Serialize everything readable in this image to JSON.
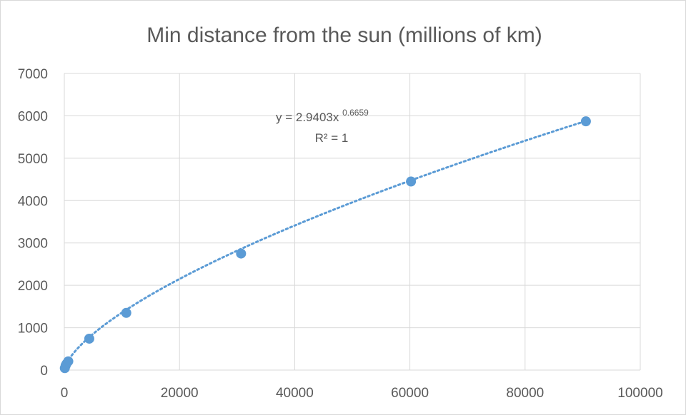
{
  "chart_data": {
    "type": "scatter",
    "title": "Min distance from the sun (millions of km)",
    "xlabel": "",
    "ylabel": "",
    "xlim": [
      0,
      100000
    ],
    "ylim": [
      0,
      7000
    ],
    "x_ticks": [
      0,
      20000,
      40000,
      60000,
      80000,
      100000
    ],
    "y_ticks": [
      0,
      1000,
      2000,
      3000,
      4000,
      5000,
      6000,
      7000
    ],
    "x_tick_labels": [
      "0",
      "20000",
      "40000",
      "60000",
      "80000",
      "100000"
    ],
    "y_tick_labels": [
      "0",
      "1000",
      "2000",
      "3000",
      "4000",
      "5000",
      "6000",
      "7000"
    ],
    "grid": true,
    "legend": "none",
    "marker_color": "#5b9bd5",
    "trendline_color": "#5b9bd5",
    "series": [
      {
        "points": [
          {
            "x": 88,
            "y": 46
          },
          {
            "x": 225,
            "y": 107
          },
          {
            "x": 365,
            "y": 147
          },
          {
            "x": 687,
            "y": 207
          },
          {
            "x": 4333,
            "y": 741
          },
          {
            "x": 10759,
            "y": 1350
          },
          {
            "x": 30687,
            "y": 2750
          },
          {
            "x": 60190,
            "y": 4450
          },
          {
            "x": 90560,
            "y": 5870
          }
        ]
      }
    ],
    "trendline": {
      "type": "power",
      "coefficient": 2.9403,
      "exponent": 0.6659,
      "equation_prefix": "y = 2.9403x",
      "equation_exponent": "0.6659",
      "r_squared_label": "R² = 1"
    }
  }
}
